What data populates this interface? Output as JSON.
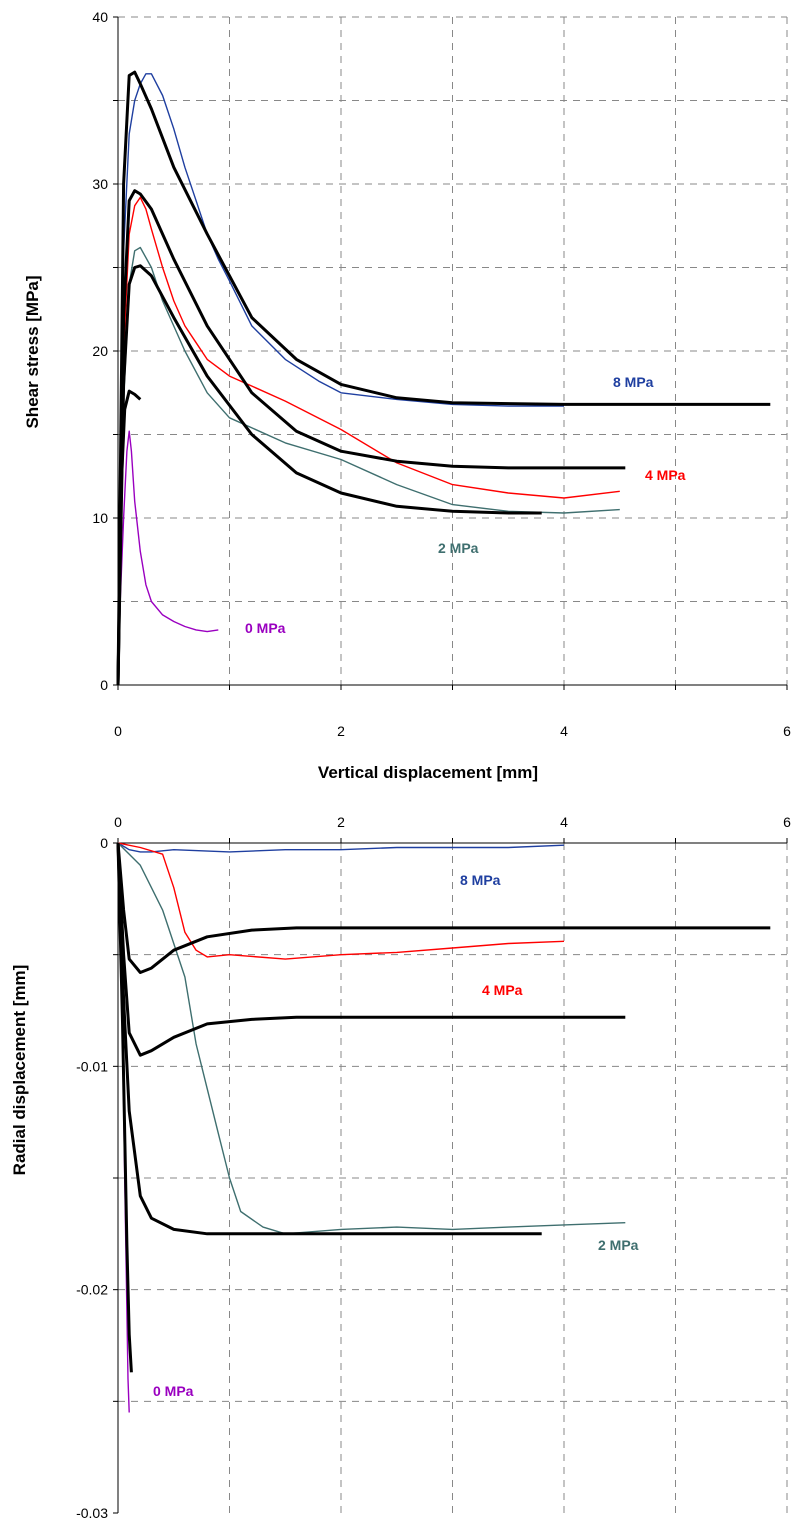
{
  "chart_data": [
    {
      "type": "line",
      "xlabel": "Vertical displacement [mm]",
      "ylabel": "Shear stress [MPa]",
      "xlim": [
        0,
        6
      ],
      "ylim": [
        0,
        40
      ],
      "x_ticks": [
        "0",
        "2",
        "4",
        "6"
      ],
      "y_ticks": [
        "0",
        "10",
        "20",
        "30",
        "40"
      ],
      "grid": true,
      "series": [
        {
          "name": "8 MPa",
          "color": "#1f3fa0",
          "x": [
            0,
            0.02,
            0.05,
            0.1,
            0.15,
            0.2,
            0.25,
            0.3,
            0.4,
            0.5,
            0.6,
            0.7,
            0.8,
            0.9,
            1.0,
            1.2,
            1.5,
            1.8,
            2.0,
            2.5,
            3.0,
            3.5,
            4.0
          ],
          "y": [
            0,
            12,
            26,
            33,
            35,
            36,
            36.6,
            36.6,
            35.3,
            33.3,
            31,
            29,
            27,
            25.5,
            24.2,
            21.5,
            19.5,
            18.2,
            17.5,
            17.1,
            16.8,
            16.7,
            16.7
          ]
        },
        {
          "name": "4 MPa",
          "color": "#ff0000",
          "x": [
            0,
            0.02,
            0.05,
            0.1,
            0.15,
            0.2,
            0.25,
            0.3,
            0.4,
            0.5,
            0.6,
            0.7,
            0.8,
            1.0,
            1.5,
            2.0,
            2.5,
            3.0,
            3.5,
            4.0,
            4.5
          ],
          "y": [
            0,
            10,
            20,
            27,
            28.7,
            29.2,
            28.5,
            27.3,
            25,
            23,
            21.5,
            20.5,
            19.5,
            18.5,
            17,
            15.3,
            13.3,
            12,
            11.5,
            11.2,
            11.6
          ]
        },
        {
          "name": "2 MPa",
          "color": "#3f6f6f",
          "x": [
            0,
            0.02,
            0.05,
            0.1,
            0.15,
            0.2,
            0.3,
            0.4,
            0.6,
            0.8,
            1.0,
            1.5,
            2.0,
            2.5,
            3.0,
            3.5,
            4.0,
            4.5
          ],
          "y": [
            0,
            8,
            17,
            24,
            26,
            26.2,
            25,
            23,
            20,
            17.5,
            16,
            14.5,
            13.5,
            12,
            10.8,
            10.4,
            10.3,
            10.5
          ]
        },
        {
          "name": "0 MPa",
          "color": "#9a00c0",
          "x": [
            0,
            0.02,
            0.05,
            0.08,
            0.1,
            0.12,
            0.15,
            0.2,
            0.25,
            0.3,
            0.4,
            0.5,
            0.6,
            0.7,
            0.8,
            0.9
          ],
          "y": [
            0,
            5,
            10,
            14,
            15.2,
            14,
            11,
            8,
            6,
            5,
            4.2,
            3.8,
            3.5,
            3.3,
            3.2,
            3.3
          ]
        },
        {
          "name": "",
          "color": "#000000",
          "x": [
            0,
            0.05,
            0.1,
            0.15,
            0.2,
            0.3,
            0.5,
            0.8,
            1.2,
            1.6,
            2.0,
            2.5,
            3.0,
            4.0,
            5.0,
            5.85
          ],
          "y": [
            0,
            30,
            36.5,
            36.7,
            36,
            34.5,
            31,
            27,
            22,
            19.5,
            18,
            17.2,
            16.9,
            16.8,
            16.8,
            16.8
          ]
        },
        {
          "name": "",
          "color": "#000000",
          "x": [
            0,
            0.05,
            0.1,
            0.15,
            0.2,
            0.3,
            0.5,
            0.8,
            1.2,
            1.6,
            2.0,
            2.5,
            3.0,
            3.5,
            4.0,
            4.55
          ],
          "y": [
            0,
            22,
            29,
            29.6,
            29.4,
            28.5,
            25.5,
            21.5,
            17.5,
            15.2,
            14,
            13.4,
            13.1,
            13.0,
            13.0,
            13.0
          ]
        },
        {
          "name": "",
          "color": "#000000",
          "x": [
            0,
            0.05,
            0.1,
            0.15,
            0.2,
            0.3,
            0.5,
            0.8,
            1.2,
            1.6,
            2.0,
            2.5,
            3.0,
            3.5,
            3.8
          ],
          "y": [
            0,
            18,
            24,
            25,
            25.1,
            24.5,
            22,
            18.5,
            15,
            12.7,
            11.5,
            10.7,
            10.4,
            10.3,
            10.3
          ]
        },
        {
          "name": "",
          "color": "#000000",
          "x": [
            0,
            0.03,
            0.06,
            0.1,
            0.15,
            0.2
          ],
          "y": [
            0,
            12,
            16.5,
            17.6,
            17.4,
            17.1
          ]
        }
      ],
      "labels": [
        "8 MPa",
        "4 MPa",
        "2 MPa",
        "0 MPa"
      ]
    },
    {
      "type": "line",
      "xlabel": "",
      "ylabel": "Radial displacement [mm]",
      "xlim": [
        0,
        6
      ],
      "ylim": [
        -0.03,
        0
      ],
      "x_ticks": [
        "0",
        "2",
        "4",
        "6"
      ],
      "y_ticks": [
        "0",
        "-0.01",
        "-0.02",
        "-0.03"
      ],
      "grid": true,
      "series": [
        {
          "name": "8 MPa",
          "color": "#1f3fa0",
          "x": [
            0,
            0.1,
            0.2,
            0.3,
            0.5,
            1.0,
            1.5,
            2.0,
            2.5,
            3.0,
            3.5,
            4.0
          ],
          "y": [
            0,
            -0.0003,
            -0.0004,
            -0.0004,
            -0.0003,
            -0.0004,
            -0.0003,
            -0.0003,
            -0.0002,
            -0.0002,
            -0.0002,
            -0.0001
          ]
        },
        {
          "name": "4 MPa",
          "color": "#ff0000",
          "x": [
            0,
            0.2,
            0.4,
            0.5,
            0.6,
            0.7,
            0.8,
            1.0,
            1.5,
            2.0,
            2.5,
            3.0,
            3.5,
            4.0
          ],
          "y": [
            0,
            -0.0002,
            -0.0005,
            -0.002,
            -0.004,
            -0.0048,
            -0.0051,
            -0.005,
            -0.0052,
            -0.005,
            -0.0049,
            -0.0047,
            -0.0045,
            -0.0044
          ]
        },
        {
          "name": "2 MPa",
          "color": "#3f6f6f",
          "x": [
            0,
            0.2,
            0.4,
            0.6,
            0.7,
            0.8,
            0.9,
            1.0,
            1.1,
            1.3,
            1.5,
            2.0,
            2.5,
            3.0,
            3.5,
            4.0,
            4.55
          ],
          "y": [
            0,
            -0.001,
            -0.003,
            -0.006,
            -0.009,
            -0.011,
            -0.013,
            -0.015,
            -0.0165,
            -0.0172,
            -0.0175,
            -0.0173,
            -0.0172,
            -0.0173,
            -0.0172,
            -0.0171,
            -0.017
          ]
        },
        {
          "name": "0 MPa",
          "color": "#9a00c0",
          "x": [
            0,
            0.04,
            0.06,
            0.08,
            0.09,
            0.1
          ],
          "y": [
            0,
            -0.008,
            -0.015,
            -0.021,
            -0.024,
            -0.0255
          ]
        },
        {
          "name": "",
          "color": "#000000",
          "x": [
            0,
            0.05,
            0.1,
            0.2,
            0.3,
            0.5,
            0.8,
            1.2,
            1.6,
            2.0,
            2.5,
            3.0,
            4.0,
            5.0,
            5.85
          ],
          "y": [
            0,
            -0.003,
            -0.0052,
            -0.0058,
            -0.0056,
            -0.0048,
            -0.0042,
            -0.0039,
            -0.0038,
            -0.0038,
            -0.0038,
            -0.0038,
            -0.0038,
            -0.0038,
            -0.0038
          ]
        },
        {
          "name": "",
          "color": "#000000",
          "x": [
            0,
            0.05,
            0.1,
            0.2,
            0.3,
            0.5,
            0.8,
            1.2,
            1.6,
            2.0,
            2.5,
            3.0,
            3.5,
            4.0,
            4.55
          ],
          "y": [
            0,
            -0.005,
            -0.0085,
            -0.0095,
            -0.0093,
            -0.0087,
            -0.0081,
            -0.0079,
            -0.0078,
            -0.0078,
            -0.0078,
            -0.0078,
            -0.0078,
            -0.0078,
            -0.0078
          ]
        },
        {
          "name": "",
          "color": "#000000",
          "x": [
            0,
            0.05,
            0.1,
            0.2,
            0.3,
            0.5,
            0.8,
            1.2,
            1.6,
            2.0,
            2.5,
            3.0,
            3.5,
            3.8
          ],
          "y": [
            0,
            -0.007,
            -0.012,
            -0.0158,
            -0.0168,
            -0.0173,
            -0.0175,
            -0.0175,
            -0.0175,
            -0.0175,
            -0.0175,
            -0.0175,
            -0.0175,
            -0.0175
          ]
        },
        {
          "name": "",
          "color": "#000000",
          "x": [
            0,
            0.04,
            0.08,
            0.1,
            0.12
          ],
          "y": [
            0,
            -0.008,
            -0.018,
            -0.022,
            -0.0237
          ]
        }
      ],
      "labels": [
        "8 MPa",
        "4 MPa",
        "2 MPa",
        "0 MPa"
      ]
    }
  ]
}
